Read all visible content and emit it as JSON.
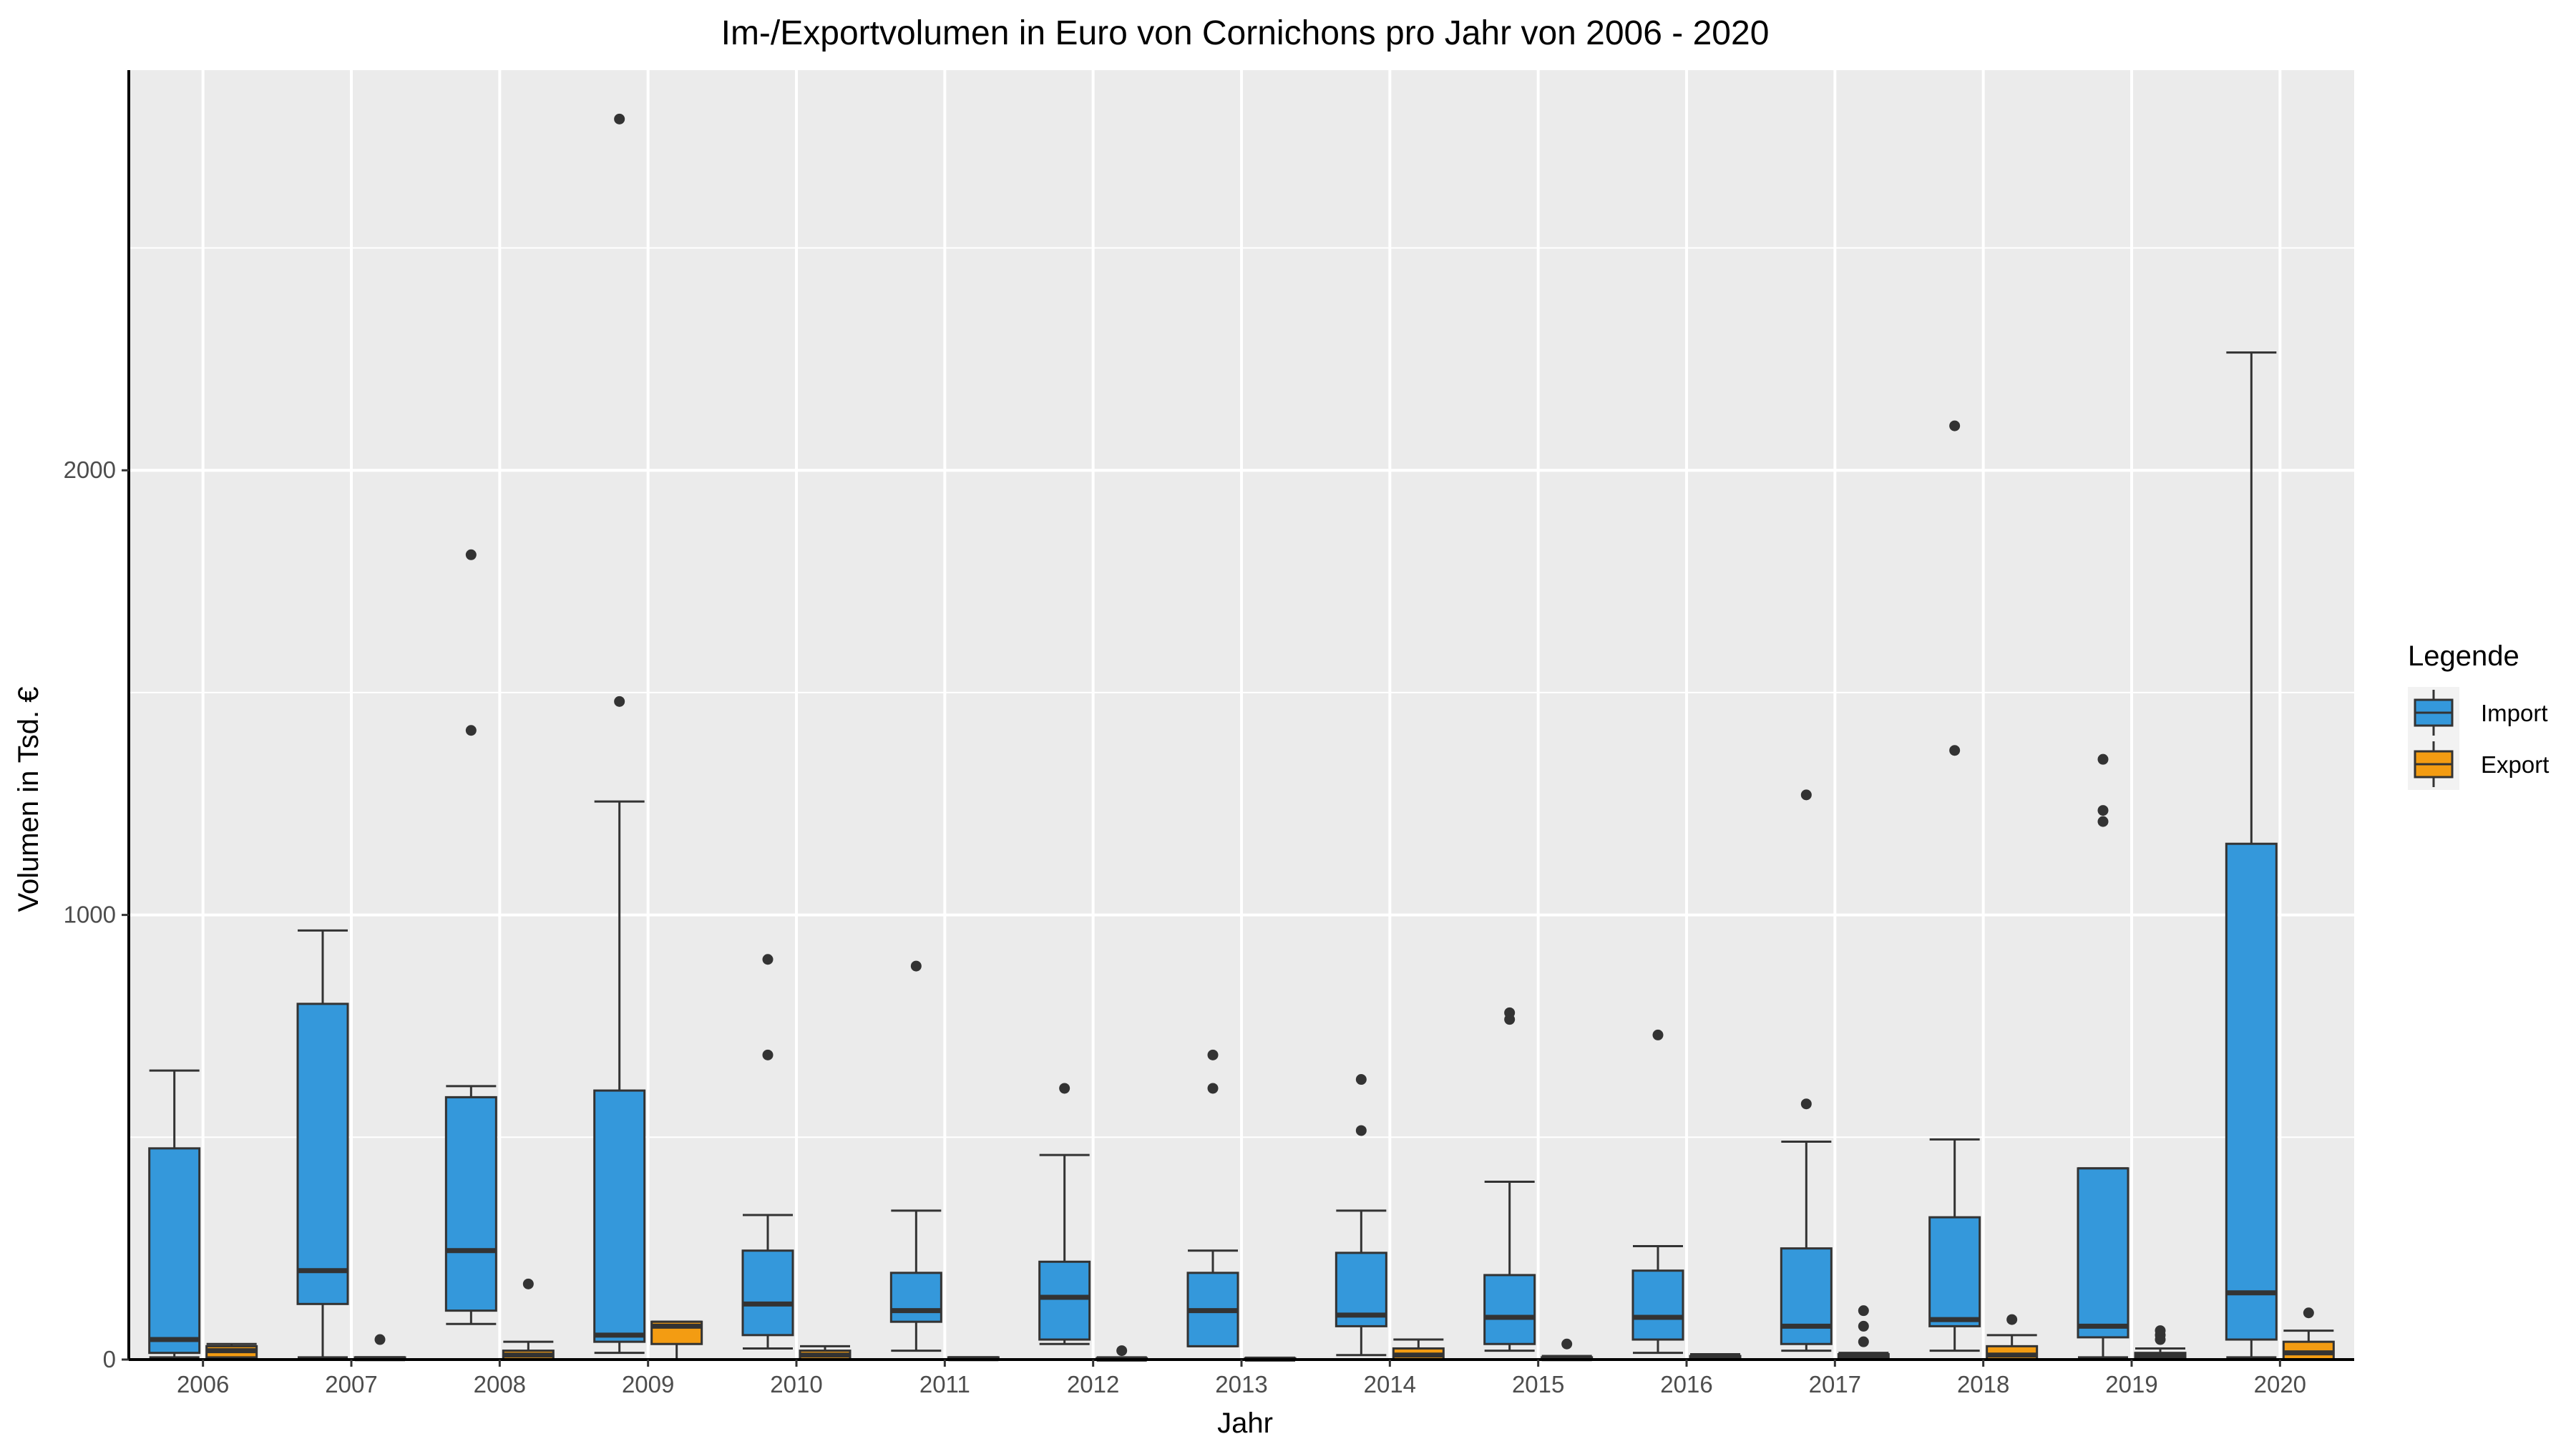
{
  "chart_data": {
    "type": "boxplot",
    "title": "Im-/Exportvolumen in Euro von Cornichons pro Jahr von 2006 - 2020",
    "xlabel": "Jahr",
    "ylabel": "Volumen in Tsd. €",
    "ylim": [
      0,
      2900
    ],
    "yticks": [
      0,
      1000,
      2000
    ],
    "grid": true,
    "legend": {
      "title": "Legende",
      "position": "right",
      "entries": [
        "Import",
        "Export"
      ]
    },
    "categories": [
      "2006",
      "2007",
      "2008",
      "2009",
      "2010",
      "2011",
      "2012",
      "2013",
      "2014",
      "2015",
      "2016",
      "2017",
      "2018",
      "2019",
      "2020"
    ],
    "series": [
      {
        "name": "Import",
        "color": "#3498db",
        "boxes": [
          {
            "whisker_low": 5,
            "q1": 15,
            "median": 45,
            "q3": 475,
            "whisker_high": 650,
            "outliers": []
          },
          {
            "whisker_low": 5,
            "q1": 125,
            "median": 200,
            "q3": 800,
            "whisker_high": 965,
            "outliers": []
          },
          {
            "whisker_low": 80,
            "q1": 110,
            "median": 245,
            "q3": 590,
            "whisker_high": 615,
            "outliers": [
              1415,
              1810
            ]
          },
          {
            "whisker_low": 15,
            "q1": 40,
            "median": 55,
            "q3": 605,
            "whisker_high": 1255,
            "outliers": [
              1480,
              2790
            ]
          },
          {
            "whisker_low": 25,
            "q1": 55,
            "median": 125,
            "q3": 245,
            "whisker_high": 325,
            "outliers": [
              685,
              900
            ]
          },
          {
            "whisker_low": 20,
            "q1": 85,
            "median": 110,
            "q3": 195,
            "whisker_high": 335,
            "outliers": [
              885
            ]
          },
          {
            "whisker_low": 35,
            "q1": 45,
            "median": 140,
            "q3": 220,
            "whisker_high": 460,
            "outliers": [
              610
            ]
          },
          {
            "whisker_low": 30,
            "q1": 30,
            "median": 110,
            "q3": 195,
            "whisker_high": 245,
            "outliers": [
              610,
              685
            ]
          },
          {
            "whisker_low": 10,
            "q1": 75,
            "median": 100,
            "q3": 240,
            "whisker_high": 335,
            "outliers": [
              515,
              630
            ]
          },
          {
            "whisker_low": 20,
            "q1": 35,
            "median": 95,
            "q3": 190,
            "whisker_high": 400,
            "outliers": [
              765,
              780
            ]
          },
          {
            "whisker_low": 15,
            "q1": 45,
            "median": 95,
            "q3": 200,
            "whisker_high": 255,
            "outliers": [
              730
            ]
          },
          {
            "whisker_low": 20,
            "q1": 35,
            "median": 75,
            "q3": 250,
            "whisker_high": 490,
            "outliers": [
              575,
              1270
            ]
          },
          {
            "whisker_low": 20,
            "q1": 75,
            "median": 90,
            "q3": 320,
            "whisker_high": 495,
            "outliers": [
              1370,
              2100
            ]
          },
          {
            "whisker_low": 5,
            "q1": 50,
            "median": 75,
            "q3": 430,
            "whisker_high": 430,
            "outliers": [
              1210,
              1235,
              1350
            ]
          },
          {
            "whisker_low": 5,
            "q1": 45,
            "median": 150,
            "q3": 1160,
            "whisker_high": 2265,
            "outliers": []
          }
        ]
      },
      {
        "name": "Export",
        "color": "#f39c12",
        "boxes": [
          {
            "whisker_low": 0,
            "q1": 5,
            "median": 20,
            "q3": 30,
            "whisker_high": 35,
            "outliers": []
          },
          {
            "whisker_low": 0,
            "q1": 0,
            "median": 2,
            "q3": 5,
            "whisker_high": 5,
            "outliers": [
              45
            ]
          },
          {
            "whisker_low": 0,
            "q1": 0,
            "median": 10,
            "q3": 20,
            "whisker_high": 40,
            "outliers": [
              170
            ]
          },
          {
            "whisker_low": 0,
            "q1": 35,
            "median": 75,
            "q3": 85,
            "whisker_high": 85,
            "outliers": []
          },
          {
            "whisker_low": 0,
            "q1": 0,
            "median": 10,
            "q3": 20,
            "whisker_high": 30,
            "outliers": []
          },
          {
            "whisker_low": 0,
            "q1": 0,
            "median": 2,
            "q3": 5,
            "whisker_high": 5,
            "outliers": []
          },
          {
            "whisker_low": 0,
            "q1": 0,
            "median": 1,
            "q3": 3,
            "whisker_high": 5,
            "outliers": [
              20
            ]
          },
          {
            "whisker_low": 0,
            "q1": 0,
            "median": 1,
            "q3": 3,
            "whisker_high": 3,
            "outliers": []
          },
          {
            "whisker_low": 0,
            "q1": 0,
            "median": 10,
            "q3": 25,
            "whisker_high": 45,
            "outliers": []
          },
          {
            "whisker_low": 0,
            "q1": 0,
            "median": 2,
            "q3": 5,
            "whisker_high": 8,
            "outliers": [
              35
            ]
          },
          {
            "whisker_low": 0,
            "q1": 0,
            "median": 3,
            "q3": 8,
            "whisker_high": 12,
            "outliers": []
          },
          {
            "whisker_low": 0,
            "q1": 0,
            "median": 5,
            "q3": 12,
            "whisker_high": 15,
            "outliers": [
              40,
              75,
              110
            ]
          },
          {
            "whisker_low": 0,
            "q1": 0,
            "median": 10,
            "q3": 30,
            "whisker_high": 55,
            "outliers": [
              90
            ]
          },
          {
            "whisker_low": 0,
            "q1": 0,
            "median": 8,
            "q3": 15,
            "whisker_high": 25,
            "outliers": [
              45,
              55,
              65
            ]
          },
          {
            "whisker_low": 0,
            "q1": 0,
            "median": 15,
            "q3": 40,
            "whisker_high": 65,
            "outliers": [
              105
            ]
          }
        ]
      }
    ]
  }
}
